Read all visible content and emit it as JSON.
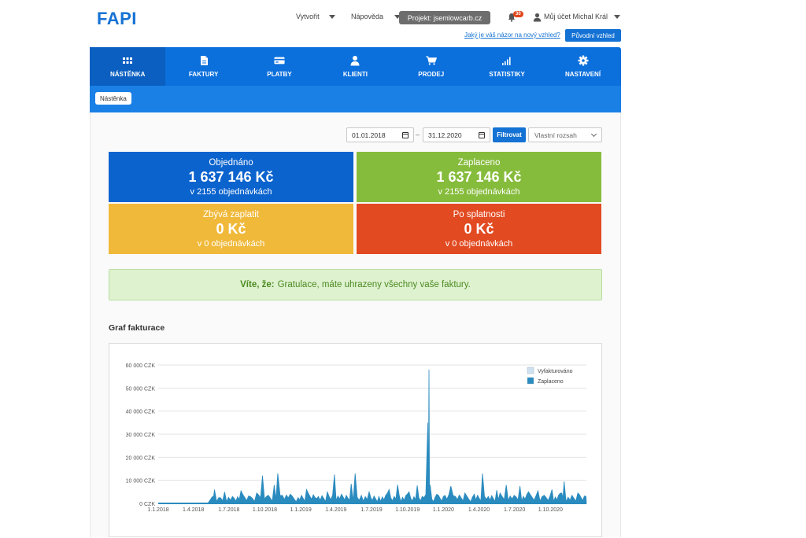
{
  "header": {
    "logo": "FAPI",
    "menu_create": "Vytvořit",
    "menu_help": "Nápověda",
    "project": "Projekt: jsemlowcarb.cz",
    "notifications_count": "30",
    "account": "Můj účet Michal Král",
    "feedback_link": "Jaký je váš názor na nový vzhled?",
    "old_look_button": "Původní vzhled"
  },
  "nav": {
    "items": [
      {
        "label": "NÁSTĚNKA",
        "icon": "grid-icon",
        "active": true
      },
      {
        "label": "FAKTURY",
        "icon": "document-icon",
        "active": false
      },
      {
        "label": "PLATBY",
        "icon": "credit-card-icon",
        "active": false
      },
      {
        "label": "KLIENTI",
        "icon": "user-icon",
        "active": false
      },
      {
        "label": "PRODEJ",
        "icon": "cart-icon",
        "active": false
      },
      {
        "label": "STATISTIKY",
        "icon": "bars-icon",
        "active": false
      },
      {
        "label": "NASTAVENÍ",
        "icon": "gear-icon",
        "active": false
      }
    ],
    "subtab": "Nástěnka"
  },
  "filters": {
    "date_from": "01.01.2018",
    "date_to": "31.12.2020",
    "filter_button": "Filtrovat",
    "range_select": "Vlastní rozsah"
  },
  "tiles": {
    "ordered": {
      "label": "Objednáno",
      "amount": "1 637 146 Kč",
      "sub": "v 2155 objednávkách",
      "color": "#0b63ce"
    },
    "paid": {
      "label": "Zaplaceno",
      "amount": "1 637 146 Kč",
      "sub": "v 2155 objednávkách",
      "color": "#86bc3c"
    },
    "remaining": {
      "label": "Zbývá zaplatit",
      "amount": "0 Kč",
      "sub": "v 0 objednávkách",
      "color": "#f0b93a"
    },
    "overdue": {
      "label": "Po splatnosti",
      "amount": "0 Kč",
      "sub": "v 0 objednávkách",
      "color": "#e24a21"
    }
  },
  "info": {
    "prefix": "Víte, že:",
    "text": "Gratulace, máte uhrazeny všechny vaše faktury."
  },
  "chart_title": "Graf fakturace",
  "chart_data": {
    "type": "area",
    "y_ticks": [
      "0 CZK",
      "10 000 CZK",
      "20 000 CZK",
      "30 000 CZK",
      "40 000 CZK",
      "50 000 CZK",
      "60 000 CZK"
    ],
    "ylim": [
      0,
      60000
    ],
    "x_ticks": [
      "1.1.2018",
      "1.4.2018",
      "1.7.2018",
      "1.10.2018",
      "1.1.2019",
      "1.4.2019",
      "1.7.2019",
      "1.10.2019",
      "1.1.2020",
      "1.4.2020",
      "1.7.2020",
      "1.10.2020"
    ],
    "legend": [
      {
        "name": "Vyfakturováno",
        "color": "#cfe0f0"
      },
      {
        "name": "Zaplaceno",
        "color": "#2a8bbf"
      }
    ],
    "legend_position": "top-right",
    "grid": true,
    "series": [
      {
        "name": "Zaplaceno",
        "points": [
          [
            "2018-01-01",
            0
          ],
          [
            "2018-05-08",
            0
          ],
          [
            "2018-05-20",
            3000
          ],
          [
            "2018-05-25",
            6000
          ],
          [
            "2018-06-05",
            2500
          ],
          [
            "2018-06-20",
            5000
          ],
          [
            "2018-07-10",
            3000
          ],
          [
            "2018-08-01",
            5500
          ],
          [
            "2018-08-25",
            3000
          ],
          [
            "2018-09-10",
            4500
          ],
          [
            "2018-09-25",
            12000
          ],
          [
            "2018-10-05",
            3000
          ],
          [
            "2018-10-25",
            8000
          ],
          [
            "2018-11-03",
            13000
          ],
          [
            "2018-11-15",
            3500
          ],
          [
            "2018-12-05",
            4000
          ],
          [
            "2018-12-25",
            2500
          ],
          [
            "2019-01-20",
            4500
          ],
          [
            "2019-02-15",
            3000
          ],
          [
            "2019-03-10",
            5000
          ],
          [
            "2019-03-28",
            12500
          ],
          [
            "2019-04-15",
            4000
          ],
          [
            "2019-05-10",
            8500
          ],
          [
            "2019-05-20",
            13000
          ],
          [
            "2019-06-05",
            3500
          ],
          [
            "2019-06-25",
            5000
          ],
          [
            "2019-07-20",
            3000
          ],
          [
            "2019-08-15",
            6000
          ],
          [
            "2019-09-10",
            3500
          ],
          [
            "2019-10-05",
            5000
          ],
          [
            "2019-11-12",
            2500
          ],
          [
            "2019-11-22",
            35000
          ],
          [
            "2019-11-25",
            58000
          ],
          [
            "2019-11-28",
            8000
          ],
          [
            "2019-12-15",
            4000
          ],
          [
            "2020-01-05",
            3500
          ],
          [
            "2020-01-20",
            7500
          ],
          [
            "2020-02-01",
            3000
          ],
          [
            "2020-02-25",
            4500
          ],
          [
            "2020-03-20",
            4000
          ],
          [
            "2020-04-10",
            13000
          ],
          [
            "2020-04-25",
            3000
          ],
          [
            "2020-05-25",
            4500
          ],
          [
            "2020-06-10",
            8000
          ],
          [
            "2020-06-30",
            3500
          ],
          [
            "2020-07-15",
            7500
          ],
          [
            "2020-08-10",
            4000
          ],
          [
            "2020-08-30",
            5500
          ],
          [
            "2020-09-15",
            3500
          ],
          [
            "2020-10-05",
            6000
          ],
          [
            "2020-10-30",
            4500
          ],
          [
            "2020-11-05",
            9500
          ],
          [
            "2020-11-25",
            3500
          ],
          [
            "2020-12-10",
            4500
          ],
          [
            "2020-12-31",
            3000
          ]
        ]
      }
    ]
  }
}
